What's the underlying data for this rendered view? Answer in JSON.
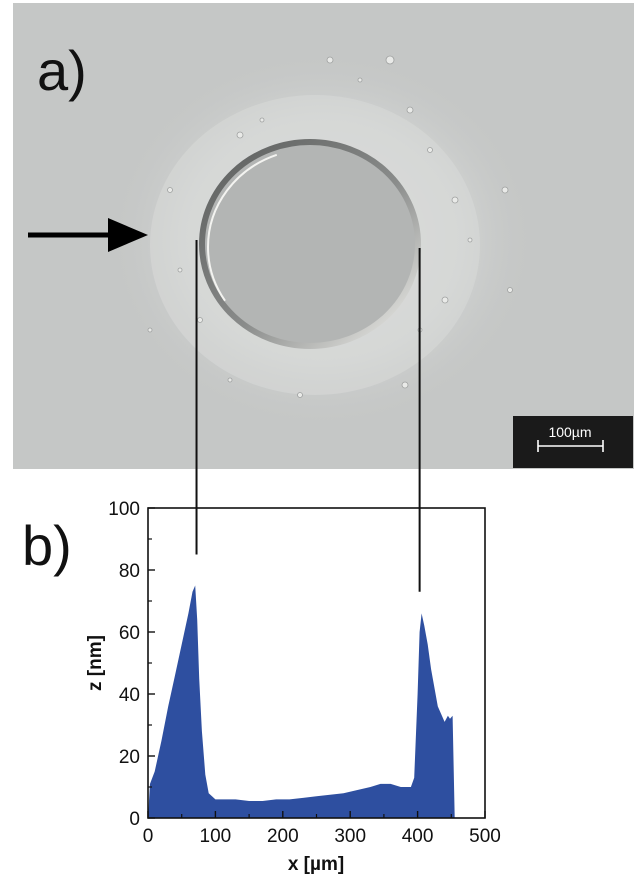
{
  "panels": {
    "a_label": "a)",
    "b_label": "b)"
  },
  "micrograph": {
    "scale_bar_label": "100µm",
    "background_color": "#c5c7c6",
    "hole_color": "#b3b5b4",
    "arrow_color": "#000000"
  },
  "chart_data": {
    "type": "area",
    "title": "",
    "xlabel": "x [µm]",
    "ylabel": "z [nm]",
    "xlim": [
      0,
      500
    ],
    "ylim": [
      0,
      100
    ],
    "xticks": [
      0,
      100,
      200,
      300,
      400,
      500
    ],
    "yticks": [
      0,
      20,
      40,
      60,
      80,
      100
    ],
    "grid": false,
    "fill_color": "#2e4fa0",
    "series": [
      {
        "x": [
          0,
          3,
          10,
          20,
          30,
          40,
          50,
          60,
          66,
          70,
          73,
          76,
          80,
          85,
          90,
          95,
          100,
          110,
          130,
          150,
          170,
          190,
          210,
          230,
          250,
          270,
          290,
          310,
          330,
          345,
          360,
          375,
          390,
          395,
          400,
          403,
          406,
          410,
          415,
          420,
          430,
          440,
          445,
          448,
          452,
          455
        ],
        "y": [
          0,
          11,
          15,
          25,
          36,
          46,
          56,
          66,
          73,
          75,
          64,
          45,
          28,
          14,
          8,
          7,
          6,
          6,
          6,
          5.5,
          5.5,
          6,
          6,
          6.5,
          7,
          7.5,
          8,
          9,
          10,
          11,
          11,
          10,
          10,
          13,
          40,
          60,
          66,
          62,
          56,
          48,
          36,
          31,
          33,
          32,
          33,
          0
        ]
      }
    ],
    "guide_lines": [
      {
        "x": 72,
        "z": 85
      },
      {
        "x": 403,
        "z": 73
      }
    ]
  }
}
